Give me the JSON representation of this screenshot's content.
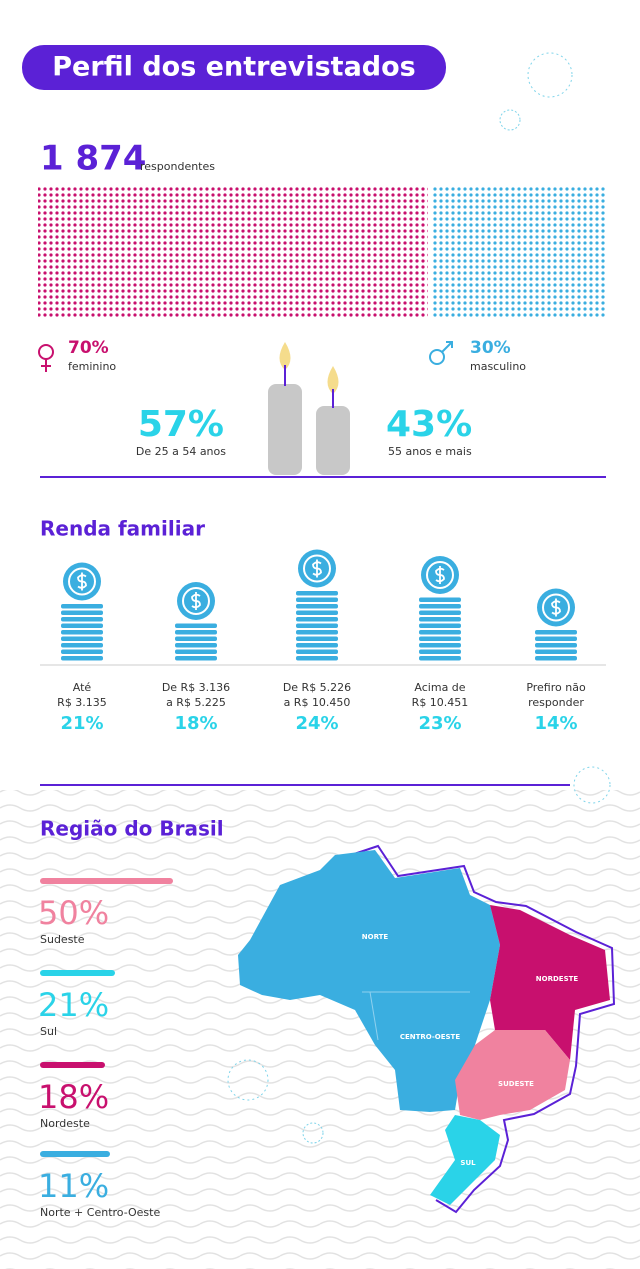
{
  "header": {
    "title": "Perfil dos entrevistados"
  },
  "respondents": {
    "count": "1 874",
    "label": "respondentes"
  },
  "gender": {
    "female": {
      "percent": "70%",
      "label": "feminino"
    },
    "male": {
      "percent": "30%",
      "label": "masculino"
    }
  },
  "age": [
    {
      "percent": "57%",
      "label": "De 25 a 54 anos"
    },
    {
      "percent": "43%",
      "label": "55 anos e mais"
    }
  ],
  "income": {
    "title": "Renda familiar",
    "items": [
      {
        "lines": [
          "Até",
          "R$ 3.135"
        ],
        "percent": "21%"
      },
      {
        "lines": [
          "De R$ 3.136",
          "a R$ 5.225"
        ],
        "percent": "18%"
      },
      {
        "lines": [
          "De R$ 5.226",
          "a R$ 10.450"
        ],
        "percent": "24%"
      },
      {
        "lines": [
          "Acima de",
          "R$ 10.451"
        ],
        "percent": "23%"
      },
      {
        "lines": [
          "Prefiro não",
          "responder"
        ],
        "percent": "14%"
      }
    ]
  },
  "region": {
    "title": "Região do Brasil",
    "items": [
      {
        "percent": "50%",
        "label": "Sudeste"
      },
      {
        "percent": "21%",
        "label": "Sul"
      },
      {
        "percent": "18%",
        "label": "Nordeste"
      },
      {
        "percent": "11%",
        "label": "Norte + Centro-Oeste"
      }
    ],
    "map_labels": [
      "NORTE",
      "NORDESTE",
      "CENTRO-OESTE",
      "SUDESTE",
      "SUL"
    ]
  }
}
